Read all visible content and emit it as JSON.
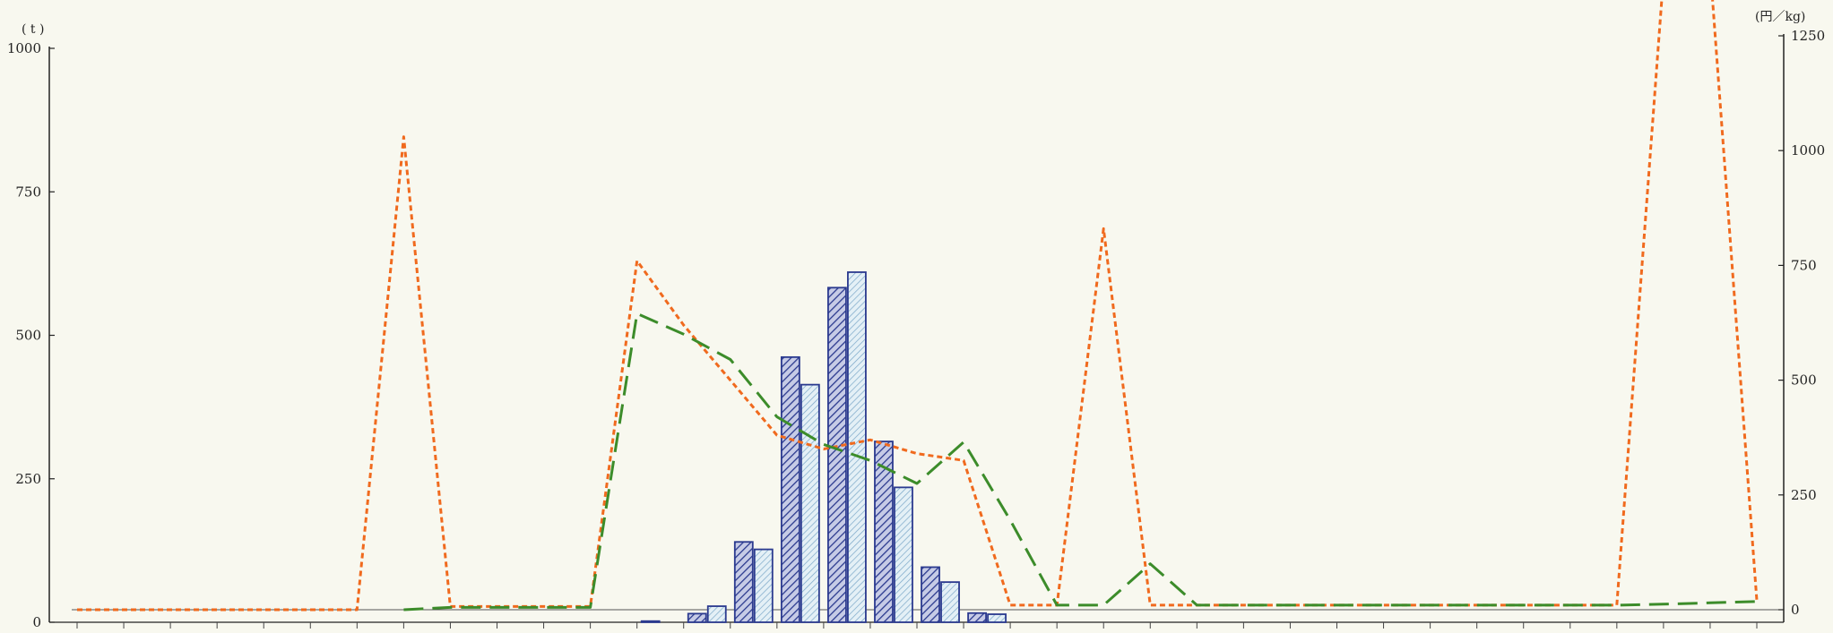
{
  "chart_data": {
    "type": "bar",
    "left_axis": {
      "unit": "( t )",
      "ticks": [
        "0",
        "250",
        "500",
        "750",
        "1000"
      ],
      "range": [
        0,
        1000
      ]
    },
    "right_axis": {
      "unit": "(円／kg)",
      "ticks": [
        "0",
        "250",
        "500",
        "750",
        "1000",
        "1250"
      ],
      "range": [
        0,
        1250
      ]
    },
    "slots": 36,
    "bar_series": [
      {
        "style": "dark-hatched",
        "color": "#2b3a8f",
        "values": [
          {
            "slot": 12,
            "value": 2
          },
          {
            "slot": 13,
            "value": 15
          },
          {
            "slot": 14,
            "value": 140
          },
          {
            "slot": 15,
            "value": 462
          },
          {
            "slot": 16,
            "value": 583
          },
          {
            "slot": 17,
            "value": 315
          },
          {
            "slot": 18,
            "value": 96
          },
          {
            "slot": 19,
            "value": 16
          }
        ]
      },
      {
        "style": "light-hatched",
        "color": "#2b3a8f",
        "values": [
          {
            "slot": 13,
            "value": 28
          },
          {
            "slot": 14,
            "value": 127
          },
          {
            "slot": 15,
            "value": 414
          },
          {
            "slot": 16,
            "value": 610
          },
          {
            "slot": 17,
            "value": 235
          },
          {
            "slot": 18,
            "value": 70
          },
          {
            "slot": 19,
            "value": 14
          }
        ]
      }
    ],
    "line_series": [
      {
        "style": "orange-dotted",
        "color": "#f06a1e",
        "axis": "right",
        "points": [
          [
            0,
            0
          ],
          [
            1,
            0
          ],
          [
            2,
            0
          ],
          [
            3,
            0
          ],
          [
            4,
            0
          ],
          [
            5,
            0
          ],
          [
            6,
            0
          ],
          [
            7,
            1030
          ],
          [
            8,
            7
          ],
          [
            9,
            7
          ],
          [
            10,
            7
          ],
          [
            11,
            7
          ],
          [
            12,
            760
          ],
          [
            13,
            620
          ],
          [
            14,
            500
          ],
          [
            15,
            380
          ],
          [
            16,
            350
          ],
          [
            17,
            370
          ],
          [
            18,
            340
          ],
          [
            19,
            325
          ],
          [
            20,
            10
          ],
          [
            21,
            10
          ],
          [
            22,
            830
          ],
          [
            23,
            10
          ],
          [
            24,
            10
          ],
          [
            25,
            10
          ],
          [
            26,
            10
          ],
          [
            27,
            10
          ],
          [
            28,
            10
          ],
          [
            29,
            10
          ],
          [
            30,
            10
          ],
          [
            31,
            10
          ],
          [
            32,
            10
          ],
          [
            33,
            10
          ],
          [
            34,
            1380
          ],
          [
            35,
            1400
          ],
          [
            36,
            20
          ]
        ]
      },
      {
        "style": "green-dashed",
        "color": "#3c8c2a",
        "axis": "right",
        "points": [
          [
            7,
            0
          ],
          [
            8,
            5
          ],
          [
            9,
            5
          ],
          [
            10,
            5
          ],
          [
            11,
            5
          ],
          [
            12,
            645
          ],
          [
            13,
            600
          ],
          [
            14,
            545
          ],
          [
            15,
            420
          ],
          [
            16,
            360
          ],
          [
            17,
            325
          ],
          [
            18,
            275
          ],
          [
            19,
            365
          ],
          [
            20,
            195
          ],
          [
            21,
            10
          ],
          [
            22,
            10
          ],
          [
            23,
            100
          ],
          [
            24,
            10
          ],
          [
            25,
            10
          ],
          [
            26,
            10
          ],
          [
            27,
            10
          ],
          [
            28,
            10
          ],
          [
            29,
            10
          ],
          [
            30,
            10
          ],
          [
            31,
            10
          ],
          [
            32,
            10
          ],
          [
            33,
            10
          ],
          [
            34,
            12
          ],
          [
            35,
            15
          ],
          [
            36,
            18
          ]
        ]
      }
    ]
  }
}
